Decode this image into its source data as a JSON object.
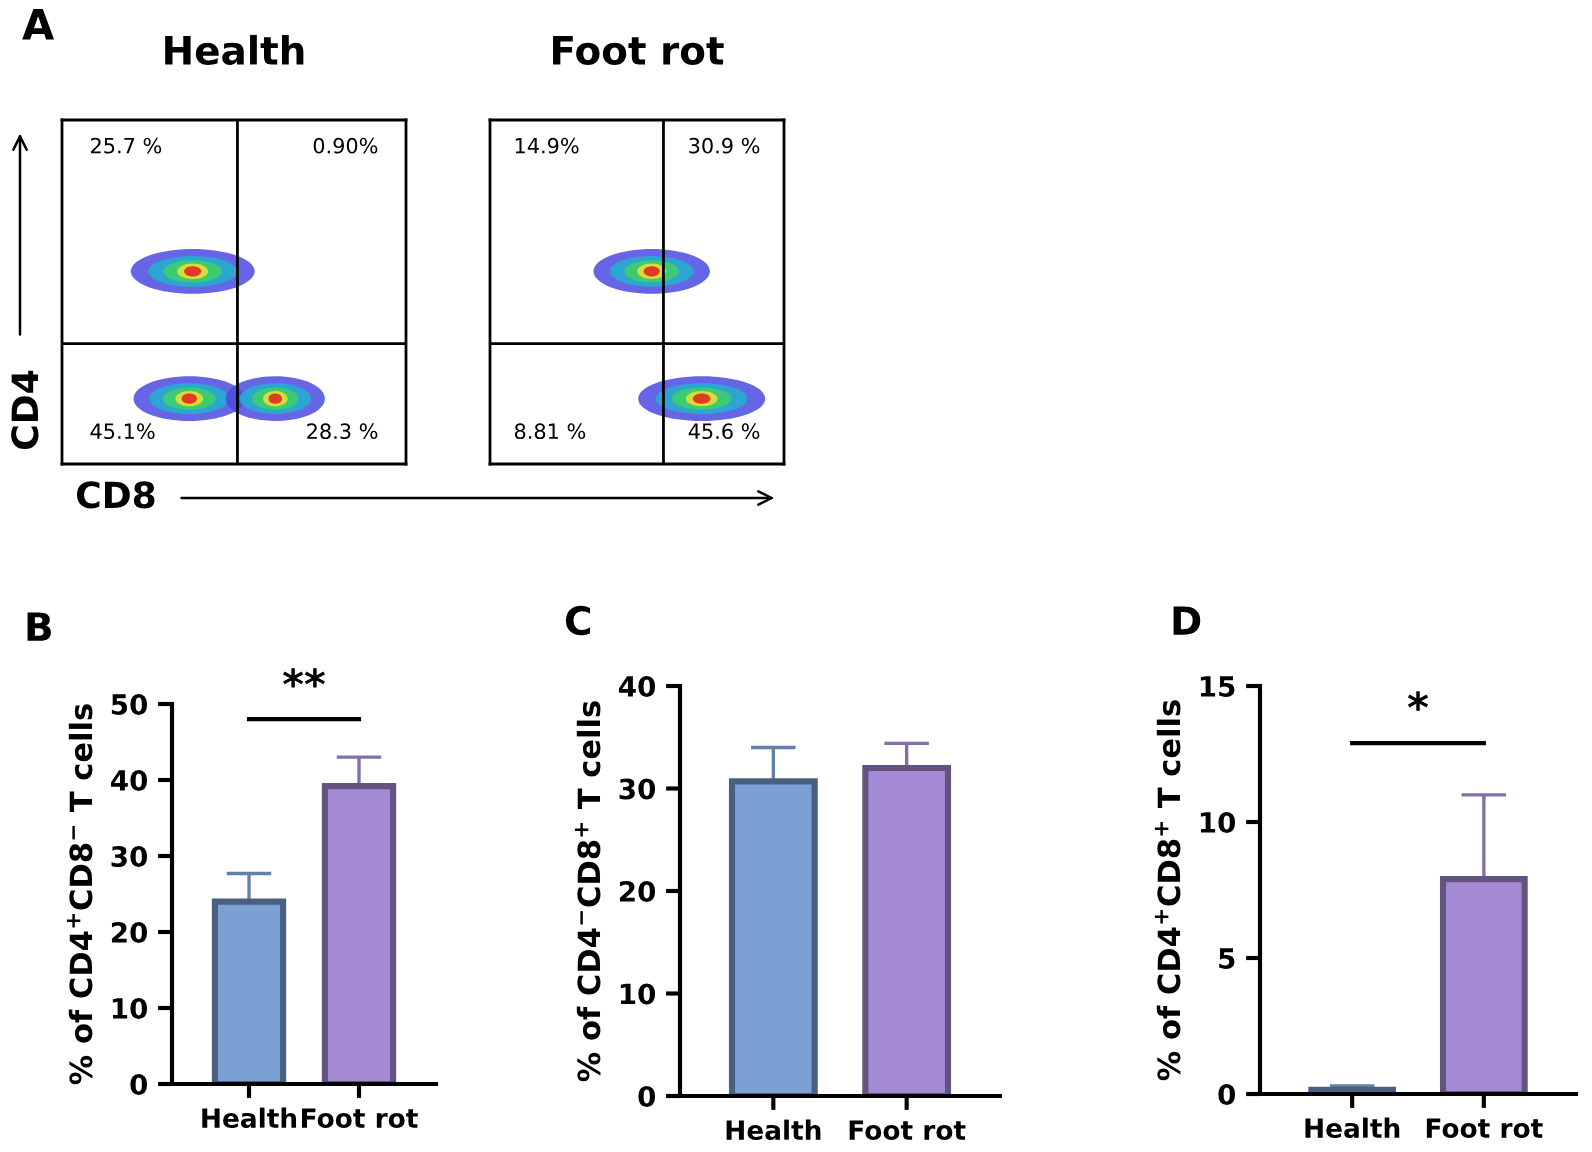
{
  "chart_data": [
    {
      "type": "other",
      "title": "Health",
      "xlabel": "CD8",
      "ylabel": "CD4",
      "annotations": [
        "A",
        "25.7 %",
        "0.90%",
        "45.1%",
        "28.3 %"
      ]
    },
    {
      "type": "other",
      "title": "Foot rot",
      "annotations": [
        "14.9%",
        "30.9 %",
        "8.81 %",
        "45.6 %"
      ]
    },
    {
      "type": "bar",
      "ylabel": "% of CD4$^{+}$CD8$^{−}$ T cells",
      "categories": [
        "Health",
        "Foot rot"
      ],
      "values": [
        24,
        39.2
      ],
      "errors": [
        [
          24,
          27.7
        ],
        [
          39.2,
          43
        ]
      ],
      "colors": [
        "#7ba0d4",
        "#a48ad4"
      ],
      "ylim": [
        0,
        50
      ],
      "yticks": [
        0,
        10,
        20,
        30,
        40,
        50
      ],
      "grid": false,
      "annotations": [
        "B",
        "**"
      ]
    },
    {
      "type": "bar",
      "ylabel": "% of CD4$^{−}$CD8$^{+}$ T cells",
      "categories": [
        "Health",
        "Foot rot"
      ],
      "values": [
        30.7,
        32
      ],
      "errors": [
        [
          30.7,
          34
        ],
        [
          32,
          34.4
        ]
      ],
      "colors": [
        "#7ba0d4",
        "#a48ad4"
      ],
      "ylim": [
        0,
        40
      ],
      "yticks": [
        0,
        10,
        20,
        30,
        40
      ],
      "grid": false,
      "annotations": [
        "C"
      ]
    },
    {
      "type": "bar",
      "ylabel": "% of CD4$^{+}$CD8$^{+}$ T cells",
      "categories": [
        "Health",
        "Foot rot"
      ],
      "values": [
        0.15,
        7.9
      ],
      "errors": [
        [
          0.15,
          0.3
        ],
        [
          7.9,
          11
        ]
      ],
      "colors": [
        "#7ba0d4",
        "#a48ad4"
      ],
      "ylim": [
        0,
        15
      ],
      "yticks": [
        0,
        5,
        10,
        15
      ],
      "grid": false,
      "annotations": [
        "D",
        "*"
      ]
    }
  ]
}
